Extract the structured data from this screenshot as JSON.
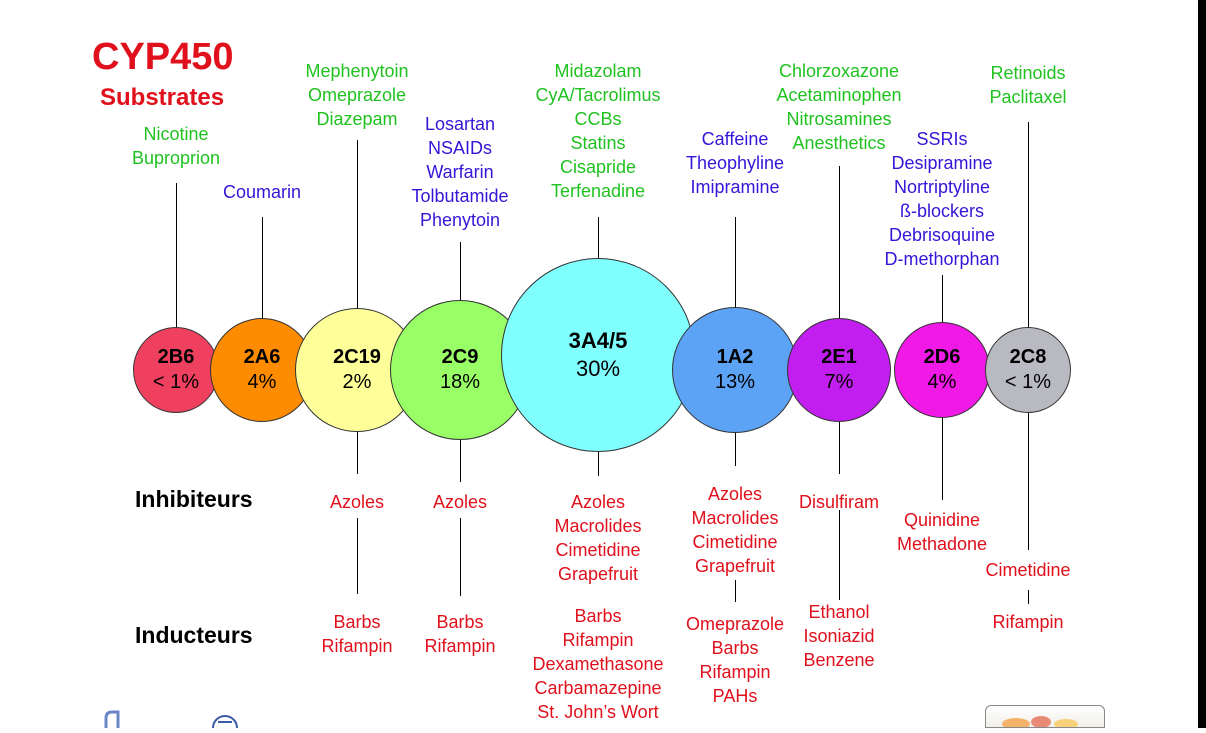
{
  "title": "CYP450",
  "subtitle": "Substrates",
  "row_labels": {
    "inhibitors": "Inhibiteurs",
    "inducers": "Inducteurs"
  },
  "colors": {
    "substrate_green": "#1fc21f",
    "substrate_blue": "#3316d8",
    "drug_red": "#e0101c",
    "title_red": "#e0101c"
  },
  "enzymes": [
    {
      "code": "2B6",
      "percent": "< 1%",
      "color": "#f0405f",
      "substrates": [
        {
          "color": "green",
          "lines": [
            "Nicotine",
            "Buproprion"
          ]
        }
      ],
      "inhibitors": [],
      "inducers": []
    },
    {
      "code": "2A6",
      "percent": "4%",
      "color": "#ff8c00",
      "substrates": [
        {
          "color": "blue",
          "lines": [
            "Coumarin"
          ]
        }
      ],
      "inhibitors": [],
      "inducers": []
    },
    {
      "code": "2C19",
      "percent": "2%",
      "color": "#ffff99",
      "substrates": [
        {
          "color": "green",
          "lines": [
            "Mephenytoin",
            "Omeprazole",
            "Diazepam"
          ]
        }
      ],
      "inhibitors": [
        "Azoles"
      ],
      "inducers": [
        "Barbs",
        "Rifampin"
      ]
    },
    {
      "code": "2C9",
      "percent": "18%",
      "color": "#99ff66",
      "substrates": [
        {
          "color": "blue",
          "lines": [
            "Losartan",
            "NSAIDs",
            "Warfarin",
            "Tolbutamide",
            "Phenytoin"
          ]
        }
      ],
      "inhibitors": [
        "Azoles"
      ],
      "inducers": [
        "Barbs",
        "Rifampin"
      ]
    },
    {
      "code": "3A4/5",
      "percent": "30%",
      "color": "#80ffff",
      "substrates": [
        {
          "color": "green",
          "lines": [
            "Midazolam",
            "CyA/Tacrolimus",
            "CCBs",
            "Statins",
            "Cisapride",
            "Terfenadine"
          ]
        }
      ],
      "inhibitors": [
        "Azoles",
        "Macrolides",
        "Cimetidine",
        "Grapefruit"
      ],
      "inducers": [
        "Barbs",
        "Rifampin",
        "Dexamethasone",
        "Carbamazepine",
        "St. John’s Wort"
      ]
    },
    {
      "code": "1A2",
      "percent": "13%",
      "color": "#5da3f5",
      "substrates": [
        {
          "color": "blue",
          "lines": [
            "Caffeine",
            "Theophyline",
            "Imipramine"
          ]
        }
      ],
      "inhibitors": [
        "Azoles",
        "Macrolides",
        "Cimetidine",
        "Grapefruit"
      ],
      "inducers": [
        "Omeprazole",
        "Barbs",
        "Rifampin",
        "PAHs"
      ]
    },
    {
      "code": "2E1",
      "percent": "7%",
      "color": "#c21ef0",
      "substrates": [
        {
          "color": "green",
          "lines": [
            "Chlorzoxazone",
            "Acetaminophen",
            "Nitrosamines",
            "Anesthetics"
          ]
        }
      ],
      "inhibitors": [
        "Disulfiram"
      ],
      "inducers": [
        "Ethanol",
        "Isoniazid",
        "Benzene"
      ]
    },
    {
      "code": "2D6",
      "percent": "4%",
      "color": "#f019e6",
      "substrates": [
        {
          "color": "blue",
          "lines": [
            "SSRIs",
            "Desipramine",
            "Nortriptyline",
            "ß-blockers",
            "Debrisoquine",
            "D-methorphan"
          ]
        }
      ],
      "inhibitors": [
        "Quinidine",
        "Methadone"
      ],
      "inducers": []
    },
    {
      "code": "2C8",
      "percent": "< 1%",
      "color": "#b9b9c2",
      "substrates": [
        {
          "color": "green",
          "lines": [
            "Retinoids",
            "Paclitaxel"
          ]
        }
      ],
      "inhibitors": [
        "Cimetidine"
      ],
      "inducers": [
        "Rifampin"
      ]
    }
  ]
}
